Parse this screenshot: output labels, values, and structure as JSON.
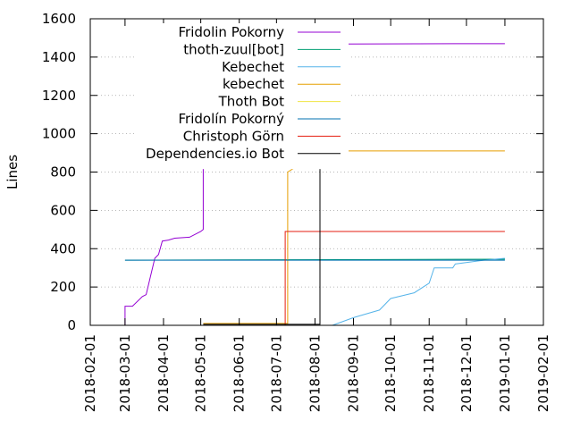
{
  "chart_data": {
    "type": "line",
    "title": "",
    "xlabel": "",
    "ylabel": "Lines",
    "ylim": [
      0,
      1600
    ],
    "yticks": [
      0,
      200,
      400,
      600,
      800,
      1000,
      1200,
      1400,
      1600
    ],
    "xlim": [
      "2018-02-01",
      "2019-02-01"
    ],
    "xticks": [
      "2018-02-01",
      "2018-03-01",
      "2018-04-01",
      "2018-05-01",
      "2018-06-01",
      "2018-07-01",
      "2018-08-01",
      "2018-09-01",
      "2018-10-01",
      "2018-11-01",
      "2018-12-01",
      "2019-01-01",
      "2019-02-01"
    ],
    "grid": "horizontal-dotted",
    "legend_position": "top-left",
    "series": [
      {
        "name": "Fridolin Pokorny",
        "color": "#9400d3",
        "points": [
          [
            "2018-03-01",
            0
          ],
          [
            "2018-03-01",
            100
          ],
          [
            "2018-03-07",
            100
          ],
          [
            "2018-03-15",
            150
          ],
          [
            "2018-03-18",
            160
          ],
          [
            "2018-03-25",
            350
          ],
          [
            "2018-03-28",
            370
          ],
          [
            "2018-03-31",
            440
          ],
          [
            "2018-04-05",
            445
          ],
          [
            "2018-04-10",
            455
          ],
          [
            "2018-04-22",
            460
          ],
          [
            "2018-05-01",
            490
          ],
          [
            "2018-05-03",
            500
          ],
          [
            "2018-05-03",
            1120
          ],
          [
            "2018-05-10",
            1200
          ],
          [
            "2018-05-20",
            1310
          ],
          [
            "2018-06-01",
            1400
          ],
          [
            "2018-06-20",
            1440
          ],
          [
            "2018-07-15",
            1465
          ],
          [
            "2018-08-15",
            1468
          ],
          [
            "2018-11-25",
            1470
          ],
          [
            "2019-01-01",
            1470
          ]
        ]
      },
      {
        "name": "thoth-zuul[bot]",
        "color": "#009e73",
        "points": [
          [
            "2018-03-01",
            340
          ],
          [
            "2019-01-01",
            345
          ]
        ]
      },
      {
        "name": "Kebechet",
        "color": "#56b4e9",
        "points": [
          [
            "2018-08-15",
            0
          ],
          [
            "2018-09-01",
            40
          ],
          [
            "2018-09-22",
            80
          ],
          [
            "2018-10-01",
            140
          ],
          [
            "2018-10-20",
            170
          ],
          [
            "2018-11-01",
            220
          ],
          [
            "2018-11-05",
            300
          ],
          [
            "2018-11-20",
            300
          ],
          [
            "2018-11-22",
            320
          ],
          [
            "2018-12-15",
            340
          ],
          [
            "2019-01-01",
            350
          ]
        ]
      },
      {
        "name": "kebechet",
        "color": "#e69f00",
        "points": [
          [
            "2018-05-03",
            10
          ],
          [
            "2018-07-10",
            10
          ],
          [
            "2018-07-10",
            800
          ],
          [
            "2018-07-15",
            820
          ],
          [
            "2018-07-20",
            845
          ],
          [
            "2018-07-28",
            850
          ],
          [
            "2018-08-01",
            910
          ],
          [
            "2019-01-01",
            910
          ]
        ]
      },
      {
        "name": "Thoth Bot",
        "color": "#f0e442",
        "points": []
      },
      {
        "name": "Fridolín Pokorný",
        "color": "#0072b2",
        "points": [
          [
            "2018-03-01",
            340
          ],
          [
            "2019-01-01",
            340
          ]
        ]
      },
      {
        "name": "Christoph Görn",
        "color": "#e51e10",
        "points": [
          [
            "2018-05-03",
            0
          ],
          [
            "2018-07-08",
            0
          ],
          [
            "2018-07-08",
            490
          ],
          [
            "2019-01-01",
            490
          ]
        ]
      },
      {
        "name": "Dependencies.io Bot",
        "color": "#000000",
        "points": [
          [
            "2018-05-03",
            5
          ],
          [
            "2018-07-08",
            5
          ],
          [
            "2018-08-05",
            5
          ],
          [
            "2018-08-05",
            910
          ],
          [
            "2018-08-10",
            910
          ]
        ]
      }
    ]
  }
}
